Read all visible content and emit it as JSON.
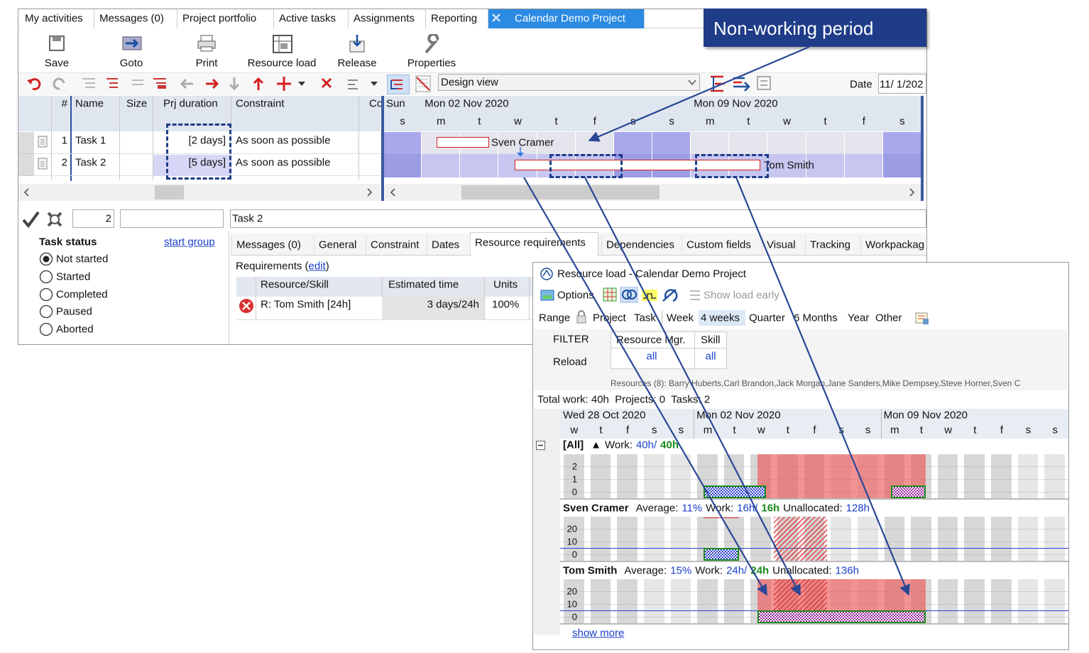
{
  "tabs": [
    "My activities",
    "Messages (0)",
    "Project portfolio",
    "Active tasks",
    "Assignments",
    "Reporting",
    "Calendar Demo Project"
  ],
  "callout": "Non-working period",
  "toolbar": [
    "Save",
    "Goto",
    "Print",
    "Resource load",
    "Release",
    "Properties"
  ],
  "view": "Design view",
  "date_label": "Date",
  "date_value": "11/ 1/202",
  "grid": {
    "columns": [
      "#",
      "Name",
      "Size",
      "Prj duration",
      "Constraint",
      "Co"
    ],
    "rows": [
      {
        "num": "1",
        "name": "Task 1",
        "duration": "[2 days]",
        "constraint": "As soon as possible"
      },
      {
        "num": "2",
        "name": "Task 2",
        "duration": "[5 days]",
        "constraint": "As soon as possible"
      }
    ]
  },
  "gantt": {
    "first_day": "Sun",
    "weeks": [
      "Mon 02 Nov 2020",
      "Mon 09 Nov 2020"
    ],
    "days": [
      "s",
      "m",
      "t",
      "w",
      "t",
      "f",
      "s",
      "s",
      "m",
      "t",
      "w",
      "t",
      "f",
      "s"
    ],
    "assignees": [
      "Sven Cramer",
      "Tom Smith"
    ]
  },
  "form": {
    "id": "2",
    "name": "Task 2"
  },
  "task_status": {
    "title": "Task status",
    "link": "start group",
    "options": [
      "Not started",
      "Started",
      "Completed",
      "Paused",
      "Aborted"
    ]
  },
  "detail_tabs": [
    "Messages (0)",
    "General",
    "Constraint",
    "Dates",
    "Resource requirements",
    "Dependencies",
    "Custom fields",
    "Visual",
    "Tracking",
    "Workpackag"
  ],
  "requirements": {
    "label": "Requirements (",
    "link": "edit",
    "close": ")",
    "columns": [
      "Resource/Skill",
      "Estimated time",
      "Units"
    ],
    "rows": [
      [
        "R: Tom Smith [24h]",
        "3 days/24h",
        "100%"
      ]
    ]
  },
  "resource_load": {
    "title": "Resource load - Calendar Demo Project",
    "options": "Options",
    "show_load_early": "Show load early",
    "range_label": "Range",
    "ranges": [
      "Project",
      "Task",
      "Week",
      "4 weeks",
      "Quarter",
      "6 Months",
      "Year",
      "Other"
    ],
    "filter": "FILTER",
    "reload": "Reload",
    "filter_columns": [
      "Resource Mgr.",
      "Skill"
    ],
    "filter_values": [
      "all",
      "all"
    ],
    "resources": "Resources (8): Barry Huberts,Carl Brandon,Jack Morgan,Jane Sanders,Mike Dempsey,Steve Horner,Sven C",
    "summary": "Total work: 40h  Projects: 0  Tasks: 2",
    "weeks": [
      "Wed 28 Oct 2020",
      "Mon 02 Nov 2020",
      "Mon 09 Nov 2020"
    ],
    "days": [
      "w",
      "t",
      "f",
      "s",
      "s",
      "m",
      "t",
      "w",
      "t",
      "f",
      "s",
      "s",
      "m",
      "t",
      "w",
      "t",
      "f",
      "s",
      "s"
    ],
    "sections": [
      {
        "name": "[All]",
        "sort": "▲",
        "work_label": "Work:",
        "work": "40h/",
        "work_total": "40h",
        "ticks": [
          0,
          1,
          2
        ]
      },
      {
        "name": "Sven Cramer",
        "average_label": "Average:",
        "average": "11%",
        "work_label": "Work:",
        "work": "16h/",
        "work_total": "16h",
        "unallocated_label": "Unallocated:",
        "unallocated": "128h",
        "ticks": [
          0,
          10,
          20
        ]
      },
      {
        "name": "Tom Smith",
        "average_label": "Average:",
        "average": "15%",
        "work_label": "Work:",
        "work": "24h/",
        "work_total": "24h",
        "unallocated_label": "Unallocated:",
        "unallocated": "136h",
        "ticks": [
          0,
          10,
          20
        ]
      }
    ],
    "show_more": "show more"
  }
}
